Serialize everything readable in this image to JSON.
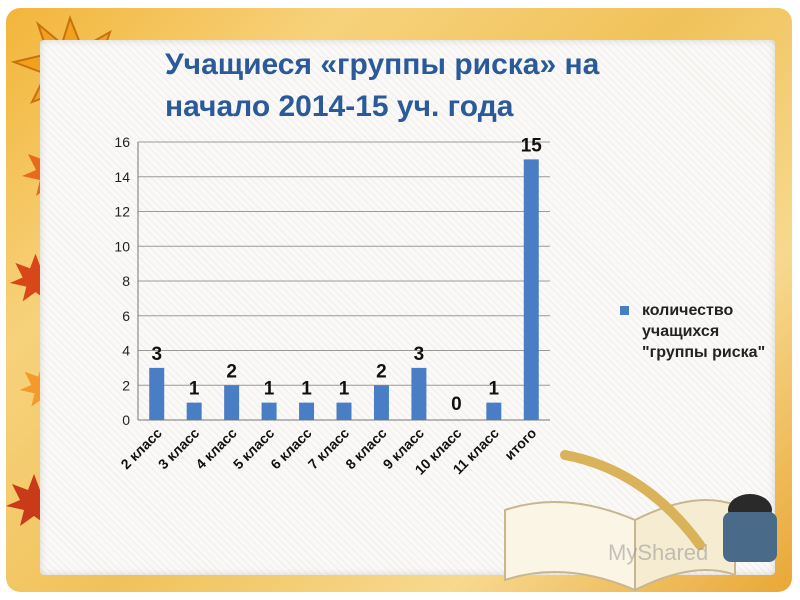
{
  "slide": {
    "title_line1": "Учащиеся «группы риска» на",
    "title_line2": "начало 2014-15 уч. года",
    "watermark": "MyShared"
  },
  "colors": {
    "bar": "#4a7ec4",
    "title": "#2a5a9a"
  },
  "chart_data": {
    "type": "bar",
    "categories": [
      "2 класс",
      "3 класс",
      "4 класс",
      "5 класс",
      "6 класс",
      "7 класс",
      "8 класс",
      "9 класс",
      "10 класс",
      "11 класс",
      "итого"
    ],
    "series": [
      {
        "name": "количество учащихся \"группы риска\"",
        "values": [
          3,
          1,
          2,
          1,
          1,
          1,
          2,
          3,
          0,
          1,
          15
        ]
      }
    ],
    "data_labels": [
      "3",
      "1",
      "2",
      "1",
      "1",
      "1",
      "2",
      "3",
      "0",
      "1",
      "15"
    ],
    "ylim": [
      0,
      16
    ],
    "yticks": [
      "0",
      "2",
      "4",
      "6",
      "8",
      "10",
      "12",
      "14",
      "16"
    ],
    "grid": true,
    "legend_position": "right"
  }
}
